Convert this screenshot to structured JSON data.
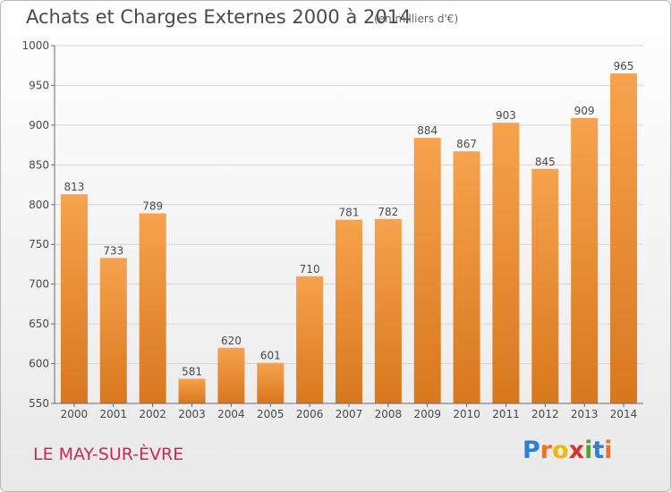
{
  "header": {
    "title": "Achats et Charges Externes 2000 à 2014",
    "unit": "(en milliers d'€)"
  },
  "footer": {
    "city": "LE MAY-SUR-ÈVRE",
    "logo": {
      "letters": [
        "P",
        "r",
        "o",
        "x",
        "i",
        "t",
        "i"
      ],
      "colors": [
        "#2b7fd4",
        "#e8732a",
        "#f2b705",
        "#d9342b",
        "#5aa02c",
        "#2b7fd4",
        "#e8732a"
      ]
    }
  },
  "colors": {
    "bar_top": "#f6a24e",
    "bar_bottom": "#d8781e",
    "grid": "#d5d5d5",
    "axis": "#6a6a6a"
  },
  "chart_data": {
    "type": "bar",
    "title": "Achats et Charges Externes 2000 à 2014",
    "categories": [
      "2000",
      "2001",
      "2002",
      "2003",
      "2004",
      "2005",
      "2006",
      "2007",
      "2008",
      "2009",
      "2010",
      "2011",
      "2012",
      "2013",
      "2014"
    ],
    "values": [
      813,
      733,
      789,
      581,
      620,
      601,
      710,
      781,
      782,
      884,
      867,
      903,
      845,
      909,
      965
    ],
    "ylim": [
      550,
      1000
    ],
    "yticks": [
      550,
      600,
      650,
      700,
      750,
      800,
      850,
      900,
      950,
      1000
    ],
    "grid": true
  }
}
